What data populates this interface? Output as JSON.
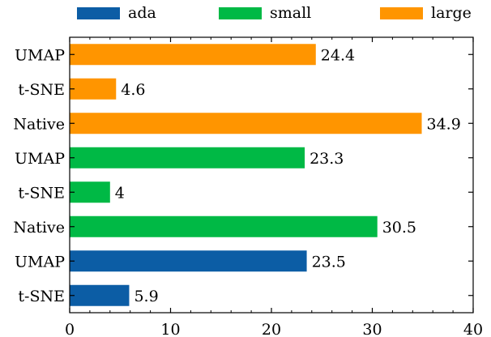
{
  "chart_data": {
    "type": "bar",
    "orientation": "horizontal",
    "legend": {
      "placement": "top",
      "entries": [
        {
          "name": "ada",
          "color": "#0c5da5"
        },
        {
          "name": "small",
          "color": "#00b945"
        },
        {
          "name": "large",
          "color": "#ff9500"
        }
      ]
    },
    "bars": [
      {
        "label": "UMAP",
        "value": 24.4,
        "series": "large"
      },
      {
        "label": "t-SNE",
        "value": 4.6,
        "series": "large"
      },
      {
        "label": "Native",
        "value": 34.9,
        "series": "large"
      },
      {
        "label": "UMAP",
        "value": 23.3,
        "series": "small"
      },
      {
        "label": "t-SNE",
        "value": 4,
        "series": "small"
      },
      {
        "label": "Native",
        "value": 30.5,
        "series": "small"
      },
      {
        "label": "UMAP",
        "value": 23.5,
        "series": "ada"
      },
      {
        "label": "t-SNE",
        "value": 5.9,
        "series": "ada"
      }
    ],
    "xlim": [
      0,
      40
    ],
    "xticks": [
      0,
      10,
      20,
      30,
      40
    ],
    "x_minor_step": 2,
    "grid": false,
    "title": "",
    "xlabel": "",
    "ylabel": ""
  }
}
